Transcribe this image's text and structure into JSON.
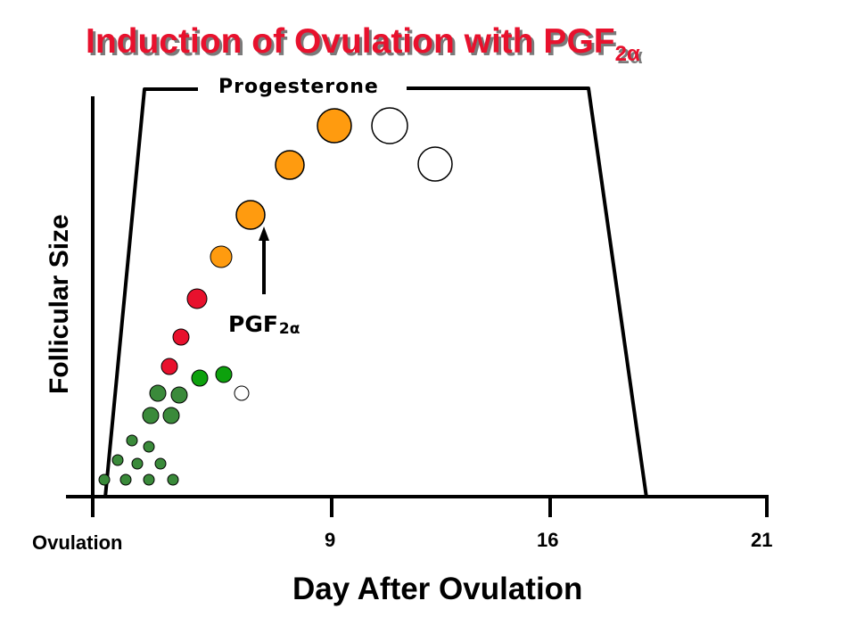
{
  "title": {
    "text": "Induction of Ovulation with PGF",
    "subscript": "2α",
    "color": "#e8112d",
    "shadow_color": "#7a7a7a"
  },
  "progesterone_label": "Progesterone",
  "pgf_marker": {
    "text": "PGF",
    "subscript": "2α"
  },
  "y_axis_label": "Follicular Size",
  "x_axis": {
    "label": "Day After Ovulation",
    "origin_label": "Ovulation",
    "ticks": [
      "9",
      "16",
      "21"
    ]
  },
  "colors": {
    "small_follicle": "#3a8a3a",
    "medium_follicle": "#0da10d",
    "red_follicle": "#e8112d",
    "orange_follicle": "#ff9b0f",
    "empty_follicle": "#ffffff",
    "outline": "#000000"
  },
  "icons": {
    "arrow": "arrow-up-icon"
  }
}
